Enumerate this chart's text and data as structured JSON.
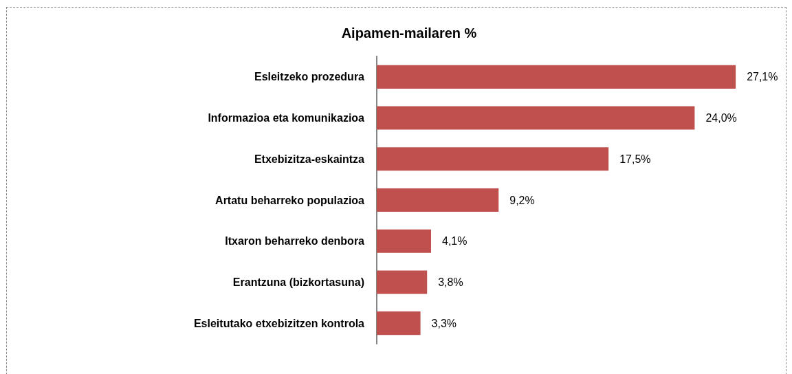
{
  "chart_data": {
    "type": "bar",
    "orientation": "horizontal",
    "title": "Aipamen-mailaren %",
    "categories": [
      "Esleitzeko prozedura",
      "Informazioa eta komunikazioa",
      "Etxebizitza-eskaintza",
      "Artatu beharreko populazioa",
      "Itxaron beharreko denbora",
      "Erantzuna (bizkortasuna)",
      "Esleitutako etxebizitzen kontrola"
    ],
    "values": [
      27.1,
      24.0,
      17.5,
      9.2,
      4.1,
      3.8,
      3.3
    ],
    "value_labels": [
      "27,1%",
      "24,0%",
      "17,5%",
      "9,2%",
      "4,1%",
      "3,8%",
      "3,3%"
    ],
    "color": "#c0504d",
    "grid": false,
    "tick_labels": "y"
  }
}
